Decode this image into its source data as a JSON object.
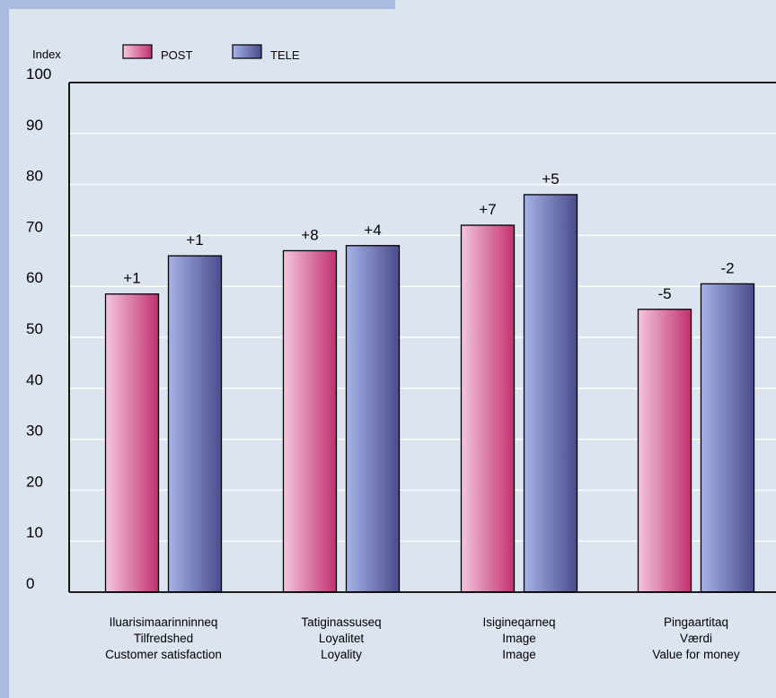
{
  "chart_data": {
    "type": "bar",
    "ylabel": "Index",
    "ylim": [
      0,
      100
    ],
    "yticks": [
      0,
      10,
      20,
      30,
      40,
      50,
      60,
      70,
      80,
      90,
      100
    ],
    "grid": true,
    "legend_position": "top-left",
    "categories": [
      [
        "Iluarisimaarinninneq",
        "Tilfredshed",
        "Customer satisfaction"
      ],
      [
        "Tatiginassuseq",
        "Loyalitet",
        "Loyality"
      ],
      [
        "Isigineqarneq",
        "Image",
        "Image"
      ],
      [
        "Pingaartitaq",
        "Værdi",
        "Value for money"
      ]
    ],
    "series": [
      {
        "name": "POST",
        "values": [
          58.5,
          67,
          72,
          55.5
        ],
        "labels": [
          "+1",
          "+8",
          "+7",
          "-5"
        ]
      },
      {
        "name": "TELE",
        "values": [
          66,
          68,
          78,
          60.5
        ],
        "labels": [
          "+1",
          "+4",
          "+5",
          "-2"
        ]
      }
    ]
  },
  "colors": {
    "background": "#dce4f0",
    "frame_strip": "#a9bce0",
    "post_light": "#f3c6dc",
    "post_dark": "#c2306f",
    "tele_light": "#a6b2e6",
    "tele_dark": "#4a4c8c",
    "grid": "#ffffff"
  }
}
